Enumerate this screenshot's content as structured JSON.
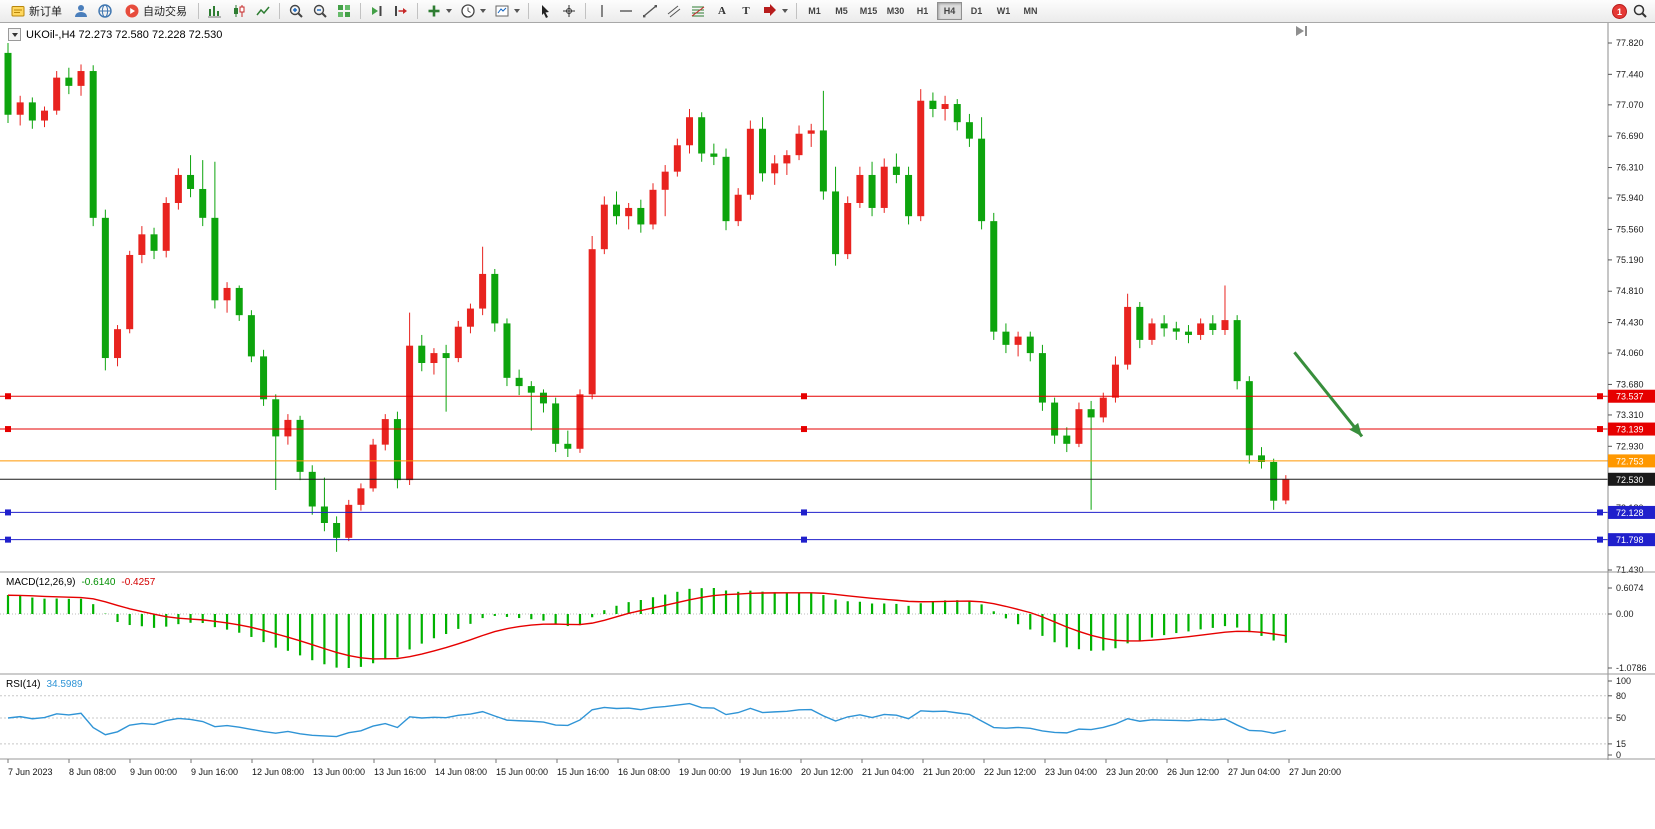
{
  "toolbar": {
    "new_order_label": "新订单",
    "autotrade_label": "自动交易",
    "text_tool_label": "A",
    "label_tool_label": "T",
    "timeframes": [
      "M1",
      "M5",
      "M15",
      "M30",
      "H1",
      "H4",
      "D1",
      "W1",
      "MN"
    ],
    "active_timeframe": "H4",
    "badge_count": "1",
    "icons": [
      "new-order-icon",
      "user-icon",
      "globe-icon",
      "autotrade-play-icon",
      "bar-chart-icon",
      "candlestick-chart-icon",
      "line-chart-icon",
      "zoom-in-icon",
      "zoom-out-icon",
      "tile-windows-icon",
      "auto-scroll-icon",
      "chart-shift-icon",
      "indicators-plus-icon",
      "clock-icon",
      "template-icon",
      "cursor-icon",
      "crosshair-icon",
      "vertical-line-icon",
      "horizontal-line-icon",
      "trendline-icon",
      "channel-icon",
      "fibonacci-icon",
      "arrows-icon",
      "search-icon"
    ]
  },
  "chart": {
    "title": "UKOil-,H4 72.273 72.580 72.228 72.530",
    "price_axis": [
      77.82,
      77.44,
      77.07,
      76.69,
      76.31,
      75.94,
      75.56,
      75.19,
      74.81,
      74.43,
      74.06,
      73.68,
      73.31,
      72.93,
      72.56,
      72.18,
      71.81,
      71.43
    ],
    "time_axis": [
      "7 Jun 2023",
      "8 Jun 08:00",
      "9 Jun 00:00",
      "9 Jun 16:00",
      "12 Jun 08:00",
      "13 Jun 00:00",
      "13 Jun 16:00",
      "14 Jun 08:00",
      "15 Jun 00:00",
      "15 Jun 16:00",
      "16 Jun 08:00",
      "19 Jun 00:00",
      "19 Jun 16:00",
      "20 Jun 12:00",
      "21 Jun 04:00",
      "21 Jun 20:00",
      "22 Jun 12:00",
      "23 Jun 04:00",
      "23 Jun 20:00",
      "26 Jun 12:00",
      "27 Jun 04:00",
      "27 Jun 20:00"
    ],
    "hlines": [
      {
        "price": 73.537,
        "label": "73.537",
        "color": "#e60000",
        "tag_bg": "#e60000",
        "handles": true
      },
      {
        "price": 73.139,
        "label": "73.139",
        "color": "#e60000",
        "tag_bg": "#e60000",
        "handles": true
      },
      {
        "price": 72.753,
        "label": "72.753",
        "color": "#ff9800",
        "tag_bg": "#ff9800",
        "handles": false
      },
      {
        "price": 72.53,
        "label": "72.530",
        "color": "#1a1a1a",
        "tag_bg": "#1a1a1a",
        "handles": false
      },
      {
        "price": 72.128,
        "label": "72.128",
        "color": "#2020cc",
        "tag_bg": "#2020cc",
        "handles": true
      },
      {
        "price": 71.798,
        "label": "71.798",
        "color": "#2020cc",
        "tag_bg": "#2020cc",
        "handles": true
      }
    ],
    "arrow": {
      "x1f": 0.805,
      "p1": 74.07,
      "x2f": 0.847,
      "p2": 73.05,
      "color": "#388e3c"
    }
  },
  "macd": {
    "label": "MACD(12,26,9)",
    "value_main": "-0.6140",
    "value_signal": "-0.4257",
    "axis": [
      "0.6074",
      "0.00",
      "-1.0786"
    ]
  },
  "rsi": {
    "label": "RSI(14)",
    "value": "34.5989",
    "axis": [
      100,
      80,
      50,
      15,
      0
    ]
  },
  "chart_data": {
    "type": "candlestick",
    "symbol": "UKOil-",
    "timeframe": "H4",
    "up_color": "#e8231f",
    "down_color": "#0da40d",
    "price_range": [
      71.43,
      77.82
    ],
    "candles": [
      [
        77.7,
        77.82,
        76.85,
        76.95
      ],
      [
        76.95,
        77.18,
        76.82,
        77.1
      ],
      [
        77.1,
        77.16,
        76.78,
        76.88
      ],
      [
        76.88,
        77.05,
        76.8,
        77.0
      ],
      [
        77.0,
        77.48,
        76.95,
        77.4
      ],
      [
        77.4,
        77.52,
        77.2,
        77.3
      ],
      [
        77.3,
        77.56,
        77.18,
        77.48
      ],
      [
        77.48,
        77.55,
        75.6,
        75.7
      ],
      [
        75.7,
        75.8,
        73.85,
        74.0
      ],
      [
        74.0,
        74.4,
        73.9,
        74.35
      ],
      [
        74.35,
        75.3,
        74.3,
        75.25
      ],
      [
        75.25,
        75.6,
        75.15,
        75.5
      ],
      [
        75.5,
        75.58,
        75.2,
        75.3
      ],
      [
        75.3,
        75.95,
        75.22,
        75.88
      ],
      [
        75.88,
        76.3,
        75.8,
        76.22
      ],
      [
        76.22,
        76.46,
        75.95,
        76.05
      ],
      [
        76.05,
        76.4,
        75.6,
        75.7
      ],
      [
        75.7,
        76.38,
        74.6,
        74.7
      ],
      [
        74.7,
        74.92,
        74.55,
        74.85
      ],
      [
        74.85,
        74.88,
        74.45,
        74.52
      ],
      [
        74.52,
        74.58,
        73.95,
        74.02
      ],
      [
        74.02,
        74.1,
        73.42,
        73.5
      ],
      [
        73.5,
        73.56,
        72.4,
        73.05
      ],
      [
        73.05,
        73.32,
        72.95,
        73.25
      ],
      [
        73.25,
        73.3,
        72.52,
        72.62
      ],
      [
        72.62,
        72.7,
        72.1,
        72.2
      ],
      [
        72.2,
        72.55,
        71.9,
        72.0
      ],
      [
        72.0,
        72.08,
        71.65,
        71.82
      ],
      [
        71.82,
        72.28,
        71.78,
        72.22
      ],
      [
        72.22,
        72.48,
        72.15,
        72.42
      ],
      [
        72.42,
        73.02,
        72.38,
        72.95
      ],
      [
        72.95,
        73.32,
        72.88,
        73.26
      ],
      [
        73.26,
        73.35,
        72.42,
        72.52
      ],
      [
        72.52,
        74.55,
        72.46,
        74.15
      ],
      [
        74.15,
        74.28,
        73.84,
        73.94
      ],
      [
        73.94,
        74.12,
        73.8,
        74.06
      ],
      [
        74.06,
        74.16,
        73.35,
        74.0
      ],
      [
        74.0,
        74.45,
        73.95,
        74.38
      ],
      [
        74.38,
        74.66,
        74.3,
        74.6
      ],
      [
        74.6,
        75.35,
        74.52,
        75.02
      ],
      [
        75.02,
        75.08,
        74.32,
        74.42
      ],
      [
        74.42,
        74.48,
        73.66,
        73.76
      ],
      [
        73.76,
        73.86,
        73.55,
        73.66
      ],
      [
        73.66,
        73.72,
        73.12,
        73.58
      ],
      [
        73.58,
        73.62,
        73.34,
        73.45
      ],
      [
        73.45,
        73.52,
        72.86,
        72.96
      ],
      [
        72.96,
        73.12,
        72.8,
        72.9
      ],
      [
        72.9,
        73.62,
        72.85,
        73.56
      ],
      [
        73.56,
        75.48,
        73.5,
        75.32
      ],
      [
        75.32,
        75.96,
        75.26,
        75.86
      ],
      [
        75.86,
        76.02,
        75.62,
        75.72
      ],
      [
        75.72,
        75.88,
        75.56,
        75.82
      ],
      [
        75.82,
        75.92,
        75.52,
        75.62
      ],
      [
        75.62,
        76.12,
        75.56,
        76.04
      ],
      [
        76.04,
        76.34,
        75.72,
        76.26
      ],
      [
        76.26,
        76.66,
        76.2,
        76.58
      ],
      [
        76.58,
        77.02,
        76.48,
        76.92
      ],
      [
        76.92,
        76.98,
        76.38,
        76.48
      ],
      [
        76.48,
        76.6,
        76.34,
        76.44
      ],
      [
        76.44,
        76.54,
        75.55,
        75.66
      ],
      [
        75.66,
        76.06,
        75.6,
        75.98
      ],
      [
        75.98,
        76.88,
        75.92,
        76.78
      ],
      [
        76.78,
        76.92,
        76.14,
        76.24
      ],
      [
        76.24,
        76.46,
        76.1,
        76.36
      ],
      [
        76.36,
        76.52,
        76.22,
        76.46
      ],
      [
        76.46,
        76.82,
        76.4,
        76.72
      ],
      [
        76.72,
        76.84,
        76.56,
        76.76
      ],
      [
        76.76,
        77.24,
        75.92,
        76.02
      ],
      [
        76.02,
        76.32,
        75.12,
        75.26
      ],
      [
        75.26,
        75.96,
        75.2,
        75.88
      ],
      [
        75.88,
        76.32,
        75.82,
        76.22
      ],
      [
        76.22,
        76.38,
        75.72,
        75.82
      ],
      [
        75.82,
        76.42,
        75.76,
        76.32
      ],
      [
        76.32,
        76.48,
        76.12,
        76.22
      ],
      [
        76.22,
        76.32,
        75.62,
        75.72
      ],
      [
        75.72,
        77.26,
        75.66,
        77.12
      ],
      [
        77.12,
        77.22,
        76.92,
        77.02
      ],
      [
        77.02,
        77.18,
        76.88,
        77.08
      ],
      [
        77.08,
        77.14,
        76.76,
        76.86
      ],
      [
        76.86,
        76.96,
        76.56,
        76.66
      ],
      [
        76.66,
        76.92,
        75.56,
        75.66
      ],
      [
        75.66,
        75.76,
        74.22,
        74.32
      ],
      [
        74.32,
        74.42,
        74.06,
        74.16
      ],
      [
        74.16,
        74.32,
        74.02,
        74.26
      ],
      [
        74.26,
        74.32,
        73.96,
        74.06
      ],
      [
        74.06,
        74.16,
        73.36,
        73.46
      ],
      [
        73.46,
        73.52,
        72.96,
        73.06
      ],
      [
        73.06,
        73.16,
        72.86,
        72.96
      ],
      [
        72.96,
        73.46,
        72.92,
        73.38
      ],
      [
        73.38,
        73.48,
        72.16,
        73.28
      ],
      [
        73.28,
        73.58,
        73.22,
        73.52
      ],
      [
        73.52,
        74.02,
        73.46,
        73.92
      ],
      [
        73.92,
        74.78,
        73.86,
        74.62
      ],
      [
        74.62,
        74.68,
        74.12,
        74.22
      ],
      [
        74.22,
        74.48,
        74.16,
        74.42
      ],
      [
        74.42,
        74.52,
        74.26,
        74.36
      ],
      [
        74.36,
        74.44,
        74.22,
        74.32
      ],
      [
        74.32,
        74.4,
        74.18,
        74.28
      ],
      [
        74.28,
        74.48,
        74.22,
        74.42
      ],
      [
        74.42,
        74.52,
        74.28,
        74.34
      ],
      [
        74.34,
        74.88,
        74.28,
        74.46
      ],
      [
        74.46,
        74.52,
        73.62,
        73.72
      ],
      [
        73.72,
        73.78,
        72.72,
        72.82
      ],
      [
        72.82,
        72.92,
        72.66,
        72.74
      ],
      [
        72.74,
        72.78,
        72.16,
        72.27
      ],
      [
        72.273,
        72.58,
        72.228,
        72.53
      ]
    ],
    "indicators": [
      {
        "name": "MACD",
        "params": [
          12,
          26,
          9
        ],
        "shown_values": [
          -0.614,
          -0.4257
        ],
        "axis_range": [
          -1.0786,
          0.6074
        ],
        "histogram_color": "#00b200",
        "signal_color": "#e60000"
      },
      {
        "name": "RSI",
        "params": [
          14
        ],
        "shown_value": 34.5989,
        "levels": [
          15,
          50,
          80
        ],
        "line_color": "#2f94d6",
        "axis_range": [
          0,
          100
        ]
      }
    ]
  }
}
